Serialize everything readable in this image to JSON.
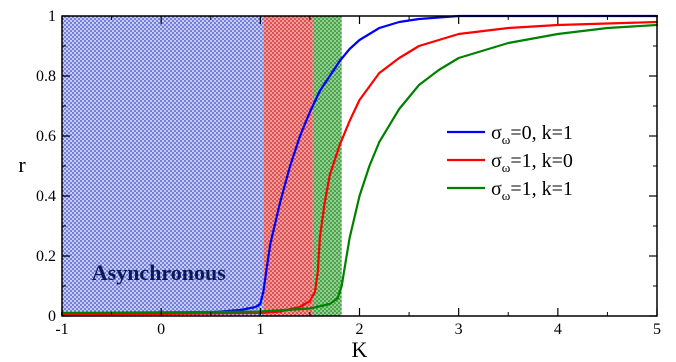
{
  "chart_data": {
    "type": "line",
    "title": "",
    "xlabel": "K",
    "ylabel": "r",
    "xlim": [
      -1,
      5
    ],
    "ylim": [
      0,
      1
    ],
    "x_ticks": [
      -1,
      0,
      1,
      2,
      3,
      4,
      5
    ],
    "y_ticks": [
      0,
      0.2,
      0.4,
      0.6,
      0.8,
      1
    ],
    "x_tick_labels": [
      "-1",
      "0",
      "1",
      "2",
      "3",
      "4",
      "5"
    ],
    "y_tick_labels": [
      "0",
      "0.2",
      "0.4",
      "0.6",
      "0.8",
      "1"
    ],
    "grid": false,
    "legend_position": "center-right",
    "regions": [
      {
        "label": "Asynchronous",
        "x0": -1,
        "x1": 1.03,
        "color": "#9aa3e6",
        "pattern": "blue"
      },
      {
        "label": "",
        "x0": 1.03,
        "x1": 1.53,
        "color": "#f08080",
        "pattern": "red"
      },
      {
        "label": "",
        "x0": 1.53,
        "x1": 1.82,
        "color": "#66bb66",
        "pattern": "green"
      }
    ],
    "series": [
      {
        "name": "σω=0, k=1",
        "name_base": "σ",
        "name_sub": "ω",
        "name_rest": "=0, k=1",
        "color": "#0000ff",
        "x": [
          -1,
          0,
          0.5,
          0.8,
          0.95,
          1.0,
          1.03,
          1.06,
          1.1,
          1.2,
          1.3,
          1.4,
          1.5,
          1.6,
          1.7,
          1.8,
          1.9,
          2.0,
          2.2,
          2.4,
          2.6,
          2.8,
          3.0,
          4.0,
          5.0
        ],
        "y": [
          0.005,
          0.008,
          0.012,
          0.02,
          0.03,
          0.04,
          0.08,
          0.15,
          0.24,
          0.38,
          0.5,
          0.6,
          0.68,
          0.75,
          0.8,
          0.85,
          0.89,
          0.92,
          0.96,
          0.98,
          0.99,
          0.995,
          1.0,
          1.0,
          1.0
        ]
      },
      {
        "name": "σω=1, k=0",
        "name_base": "σ",
        "name_sub": "ω",
        "name_rest": "=1, k=0",
        "color": "#ff0000",
        "x": [
          -1,
          0,
          1.0,
          1.2,
          1.4,
          1.5,
          1.55,
          1.58,
          1.6,
          1.65,
          1.7,
          1.8,
          1.9,
          2.0,
          2.2,
          2.4,
          2.6,
          3.0,
          3.5,
          4.0,
          5.0
        ],
        "y": [
          0.005,
          0.007,
          0.01,
          0.015,
          0.03,
          0.05,
          0.08,
          0.15,
          0.26,
          0.38,
          0.47,
          0.57,
          0.65,
          0.72,
          0.81,
          0.86,
          0.9,
          0.94,
          0.96,
          0.97,
          0.98
        ]
      },
      {
        "name": "σω=1, k=1",
        "name_base": "σ",
        "name_sub": "ω",
        "name_rest": "=1, k=1",
        "color": "#008000",
        "x": [
          -1,
          0,
          1.0,
          1.5,
          1.7,
          1.78,
          1.82,
          1.86,
          1.9,
          2.0,
          2.1,
          2.2,
          2.4,
          2.6,
          2.8,
          3.0,
          3.5,
          4.0,
          4.5,
          5.0
        ],
        "y": [
          0.01,
          0.012,
          0.015,
          0.025,
          0.04,
          0.06,
          0.1,
          0.18,
          0.26,
          0.4,
          0.5,
          0.58,
          0.69,
          0.77,
          0.82,
          0.86,
          0.91,
          0.94,
          0.96,
          0.97
        ]
      }
    ]
  }
}
